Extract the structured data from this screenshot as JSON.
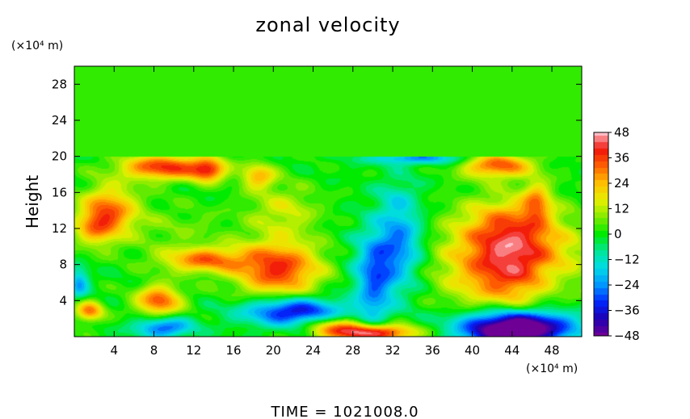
{
  "chart_data": {
    "type": "heatmap",
    "title": "zonal velocity",
    "ylabel": "Height",
    "xlabel": "",
    "x_unit": "(×10⁴ m)",
    "y_unit": "(×10⁴ m)",
    "xlim": [
      0,
      51
    ],
    "ylim": [
      0,
      30
    ],
    "x_ticks": [
      "4",
      "8",
      "12",
      "16",
      "20",
      "24",
      "28",
      "32",
      "36",
      "40",
      "44",
      "48"
    ],
    "x_tick_values": [
      4,
      8,
      12,
      16,
      20,
      24,
      28,
      32,
      36,
      40,
      44,
      48
    ],
    "y_ticks": [
      "28",
      "24",
      "20",
      "16",
      "12",
      "8",
      "4"
    ],
    "y_tick_values": [
      28,
      24,
      20,
      16,
      12,
      8,
      4
    ],
    "colorbar": {
      "range": [
        -48,
        48
      ],
      "tick_labels": [
        "48",
        "36",
        "24",
        "12",
        "0",
        "−12",
        "−24",
        "−36",
        "−48"
      ],
      "tick_values": [
        48,
        36,
        24,
        12,
        0,
        -12,
        -24,
        -36,
        -48
      ]
    },
    "background_value": 0,
    "upper_layer": {
      "y_range": [
        20,
        30
      ],
      "value": 2
    },
    "features": [
      {
        "x": 44,
        "y": 8,
        "value": 42,
        "sx": 4.5,
        "sy": 3.5
      },
      {
        "x": 43.5,
        "y": 12.5,
        "value": 18,
        "sx": 3.2,
        "sy": 2.2
      },
      {
        "x": 20.5,
        "y": 7.5,
        "value": 38,
        "sx": 3.0,
        "sy": 2.2
      },
      {
        "x": 13,
        "y": 8.5,
        "value": 30,
        "sx": 3.0,
        "sy": 1.0
      },
      {
        "x": 8.5,
        "y": 4,
        "value": 34,
        "sx": 1.6,
        "sy": 1.2
      },
      {
        "x": 3.5,
        "y": 14,
        "value": 30,
        "sx": 2.0,
        "sy": 2.0
      },
      {
        "x": 2,
        "y": 12,
        "value": 18,
        "sx": 1.5,
        "sy": 1.5
      },
      {
        "x": 9,
        "y": 18.8,
        "value": 38,
        "sx": 3.0,
        "sy": 1.0
      },
      {
        "x": 13.5,
        "y": 18.5,
        "value": 32,
        "sx": 1.2,
        "sy": 0.9
      },
      {
        "x": 18.5,
        "y": 17.8,
        "value": 24,
        "sx": 1.2,
        "sy": 1.0
      },
      {
        "x": 42.5,
        "y": 19,
        "value": 34,
        "sx": 2.5,
        "sy": 1.0
      },
      {
        "x": 46.5,
        "y": 15,
        "value": 22,
        "sx": 1.0,
        "sy": 1.6
      },
      {
        "x": 1.5,
        "y": 2.8,
        "value": 30,
        "sx": 1.0,
        "sy": 0.8
      },
      {
        "x": 21,
        "y": 14,
        "value": 14,
        "sx": 2.5,
        "sy": 2.0
      },
      {
        "x": 22,
        "y": 2.8,
        "value": -40,
        "sx": 3.5,
        "sy": 1.1
      },
      {
        "x": 30,
        "y": 5,
        "value": -16,
        "sx": 1.2,
        "sy": 4.0
      },
      {
        "x": 31.5,
        "y": 8,
        "value": -22,
        "sx": 2.2,
        "sy": 3.0
      },
      {
        "x": 33,
        "y": 11,
        "value": -14,
        "sx": 1.5,
        "sy": 2.0
      },
      {
        "x": 32.5,
        "y": 15,
        "value": -12,
        "sx": 1.5,
        "sy": 2.0
      },
      {
        "x": 34.5,
        "y": 19.8,
        "value": -24,
        "sx": 3.5,
        "sy": 0.5
      },
      {
        "x": 44,
        "y": 0.5,
        "value": -44,
        "sx": 3.5,
        "sy": 1.3
      },
      {
        "x": 45,
        "y": 1.5,
        "value": -30,
        "sx": 4.5,
        "sy": 1.3
      },
      {
        "x": 9,
        "y": 1,
        "value": -30,
        "sx": 2.0,
        "sy": 0.8
      },
      {
        "x": 0.5,
        "y": 6,
        "value": -22,
        "sx": 0.7,
        "sy": 1.2
      },
      {
        "x": 30,
        "y": 0.4,
        "value": 48,
        "sx": 3.0,
        "sy": 0.7
      },
      {
        "x": 26,
        "y": 1.2,
        "value": 22,
        "sx": 2.0,
        "sy": 0.8
      },
      {
        "x": 48,
        "y": 6,
        "value": -10,
        "sx": 2.0,
        "sy": 2.0
      },
      {
        "x": 10,
        "y": 12,
        "value": 6,
        "sx": 4.0,
        "sy": 2.0
      }
    ]
  },
  "time_label": "TIME  =  1021008.0"
}
